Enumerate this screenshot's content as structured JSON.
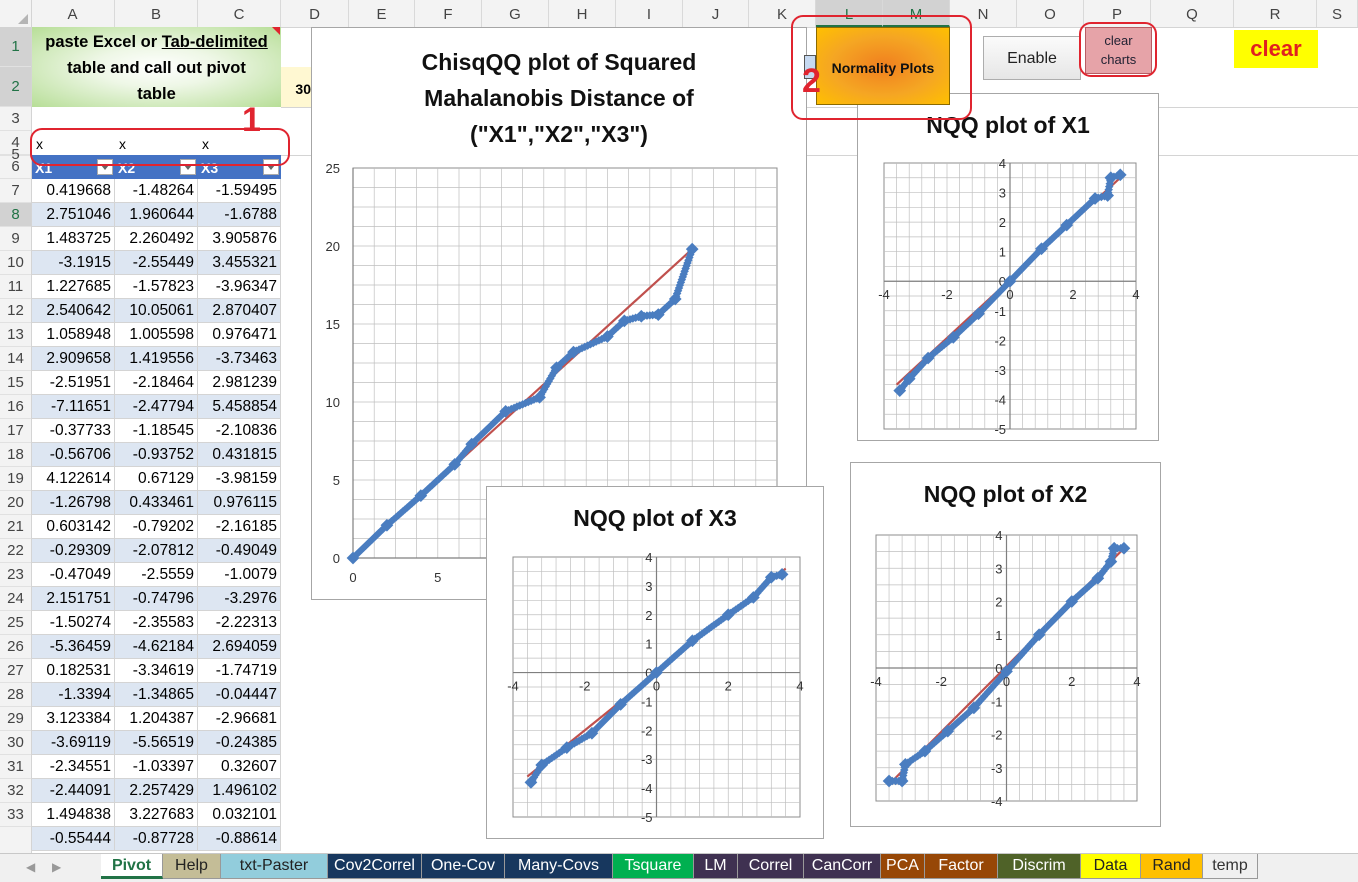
{
  "columns": [
    "A",
    "B",
    "C",
    "D",
    "E",
    "F",
    "G",
    "H",
    "I",
    "J",
    "K",
    "L",
    "M",
    "N",
    "O",
    "P",
    "Q",
    "R",
    "S"
  ],
  "rows": [
    "1",
    "2",
    "3",
    "4",
    "5",
    "6",
    "7",
    "8",
    "9",
    "10",
    "11",
    "12",
    "13",
    "14",
    "15",
    "16",
    "17",
    "18",
    "19",
    "20",
    "21",
    "22",
    "23",
    "24",
    "25",
    "26",
    "27",
    "28",
    "29",
    "30",
    "31",
    "32",
    "33"
  ],
  "paste_box": {
    "line1_a": "paste Excel or ",
    "line1_b": "Tab-delimited",
    "line2": "table and call out pivot",
    "line3": "table"
  },
  "cell_d2": "30",
  "row4": {
    "a": "x",
    "b": "x",
    "c": "x"
  },
  "headers": {
    "a": "X1",
    "b": "X2",
    "c": "X3"
  },
  "table": [
    [
      "0.419668",
      "-1.48264",
      "-1.59495"
    ],
    [
      "2.751046",
      "1.960644",
      "-1.6788"
    ],
    [
      "1.483725",
      "2.260492",
      "3.905876"
    ],
    [
      "-3.1915",
      "-2.55449",
      "3.455321"
    ],
    [
      "1.227685",
      "-1.57823",
      "-3.96347"
    ],
    [
      "2.540642",
      "10.05061",
      "2.870407"
    ],
    [
      "1.058948",
      "1.005598",
      "0.976471"
    ],
    [
      "2.909658",
      "1.419556",
      "-3.73463"
    ],
    [
      "-2.51951",
      "-2.18464",
      "2.981239"
    ],
    [
      "-7.11651",
      "-2.47794",
      "5.458854"
    ],
    [
      "-0.37733",
      "-1.18545",
      "-2.10836"
    ],
    [
      "-0.56706",
      "-0.93752",
      "0.431815"
    ],
    [
      "4.122614",
      "0.67129",
      "-3.98159"
    ],
    [
      "-1.26798",
      "0.433461",
      "0.976115"
    ],
    [
      "0.603142",
      "-0.79202",
      "-2.16185"
    ],
    [
      "-0.29309",
      "-2.07812",
      "-0.49049"
    ],
    [
      "-0.47049",
      "-2.5559",
      "-1.0079"
    ],
    [
      "2.151751",
      "-0.74796",
      "-3.2976"
    ],
    [
      "-1.50274",
      "-2.35583",
      "-2.22313"
    ],
    [
      "-5.36459",
      "-4.62184",
      "2.694059"
    ],
    [
      "0.182531",
      "-3.34619",
      "-1.74719"
    ],
    [
      "-1.3394",
      "-1.34865",
      "-0.04447"
    ],
    [
      "3.123384",
      "1.204387",
      "-2.96681"
    ],
    [
      "-3.69119",
      "-5.56519",
      "-0.24385"
    ],
    [
      "-2.34551",
      "-1.03397",
      "0.32607"
    ],
    [
      "-2.44091",
      "2.257429",
      "1.496102"
    ],
    [
      "1.494838",
      "3.227683",
      "0.032101"
    ],
    [
      "-0.55444",
      "-0.87728",
      "-0.88614"
    ]
  ],
  "buttons": {
    "normality": "Normality Plots",
    "enable": "Enable",
    "clear_charts_1": "clear",
    "clear_charts_2": "charts",
    "clear": "clear"
  },
  "annotations": {
    "one": "1",
    "two": "2"
  },
  "tabs": [
    "Pivot",
    "Help",
    "txt-Paster",
    "Cov2Correl",
    "One-Cov",
    "Many-Covs",
    "Tsquare",
    "LM",
    "Correl",
    "CanCorr",
    "PCA",
    "Factor",
    "Discrim",
    "Data",
    "Rand",
    "temp"
  ],
  "tab_colors": {
    "Pivot": "#ffffff",
    "Help": "#c4bd97",
    "txt-Paster": "#92cddc",
    "Cov2Correl": "#17375e",
    "One-Cov": "#17375e",
    "Many-Covs": "#17375e",
    "Tsquare": "#00b050",
    "LM": "#3f3151",
    "Correl": "#3f3151",
    "CanCorr": "#3f3151",
    "PCA": "#974706",
    "Factor": "#974706",
    "Discrim": "#4f6228",
    "Data": "#ffff00",
    "Rand": "#ffc000",
    "temp": "#f0f0f0"
  },
  "accent_colors": {
    "point": "#4a7dc0",
    "line": "#c0504d",
    "highlight": "#e0242f"
  },
  "chart_data": [
    {
      "type": "scatter",
      "title_lines": [
        "ChisqQQ plot of Squared",
        "Mahalanobis Distance of",
        "(\"X1\",\"X2\",\"X3\")"
      ],
      "xlim": [
        0,
        25
      ],
      "ylim": [
        0,
        25
      ],
      "x_ticks": [
        "0",
        "5"
      ],
      "y_ticks": [
        "0",
        "5",
        "10",
        "15",
        "20",
        "25"
      ],
      "grid": true,
      "line": [
        [
          0,
          0
        ],
        [
          20,
          19.8
        ]
      ],
      "points": [
        [
          0,
          0
        ],
        [
          2,
          2.1
        ],
        [
          4,
          4
        ],
        [
          6,
          6
        ],
        [
          7,
          7.3
        ],
        [
          9,
          9.4
        ],
        [
          11,
          10.3
        ],
        [
          12,
          12.2
        ],
        [
          13,
          13.2
        ],
        [
          15,
          14.2
        ],
        [
          16,
          15.2
        ],
        [
          17,
          15.5
        ],
        [
          18,
          15.6
        ],
        [
          19,
          16.6
        ],
        [
          20,
          19.8
        ]
      ]
    },
    {
      "type": "scatter",
      "title": "NQQ plot of X1",
      "xlim": [
        -4,
        4
      ],
      "ylim": [
        -5,
        4
      ],
      "x_ticks": [
        "-4",
        "-2",
        "0",
        "2",
        "4"
      ],
      "y_ticks": [
        "4",
        "3",
        "2",
        "1",
        "0",
        "-1",
        "-2",
        "-3",
        "-4",
        "-5"
      ],
      "grid": true,
      "line": [
        [
          -3.6,
          -3.5
        ],
        [
          3.6,
          3.6
        ]
      ],
      "points": [
        [
          -3.5,
          -3.7
        ],
        [
          -3.2,
          -3.3
        ],
        [
          -2.6,
          -2.6
        ],
        [
          -1.8,
          -1.9
        ],
        [
          -1,
          -1.1
        ],
        [
          0,
          0
        ],
        [
          1,
          1.1
        ],
        [
          1.8,
          1.9
        ],
        [
          2.7,
          2.8
        ],
        [
          3.1,
          2.9
        ],
        [
          3.2,
          3.5
        ],
        [
          3.5,
          3.6
        ]
      ]
    },
    {
      "type": "scatter",
      "title": "NQQ plot of X3",
      "xlim": [
        -4,
        4
      ],
      "ylim": [
        -5,
        4
      ],
      "x_ticks": [
        "-4",
        "-2",
        "0",
        "2",
        "4"
      ],
      "y_ticks": [
        "4",
        "3",
        "2",
        "1",
        "0",
        "-1",
        "-2",
        "-3",
        "-4",
        "-5"
      ],
      "grid": true,
      "line": [
        [
          -3.6,
          -3.6
        ],
        [
          3.6,
          3.6
        ]
      ],
      "points": [
        [
          -3.5,
          -3.8
        ],
        [
          -3.2,
          -3.2
        ],
        [
          -2.5,
          -2.6
        ],
        [
          -1.8,
          -2.1
        ],
        [
          -1,
          -1.1
        ],
        [
          0,
          0
        ],
        [
          1,
          1.1
        ],
        [
          2,
          2
        ],
        [
          2.7,
          2.6
        ],
        [
          3.2,
          3.3
        ],
        [
          3.5,
          3.4
        ]
      ]
    },
    {
      "type": "scatter",
      "title": "NQQ plot of X2",
      "xlim": [
        -4,
        4
      ],
      "ylim": [
        -4,
        4
      ],
      "x_ticks": [
        "-4",
        "-2",
        "0",
        "2",
        "4"
      ],
      "y_ticks": [
        "4",
        "3",
        "2",
        "1",
        "0",
        "-1",
        "-2",
        "-3",
        "-4"
      ],
      "grid": true,
      "line": [
        [
          -3.6,
          -3.5
        ],
        [
          3.6,
          3.6
        ]
      ],
      "points": [
        [
          -3.6,
          -3.4
        ],
        [
          -3.2,
          -3.4
        ],
        [
          -3.1,
          -2.9
        ],
        [
          -2.5,
          -2.5
        ],
        [
          -1.8,
          -1.9
        ],
        [
          -1,
          -1.2
        ],
        [
          0,
          -0.1
        ],
        [
          1,
          1
        ],
        [
          2,
          2
        ],
        [
          2.8,
          2.7
        ],
        [
          3.2,
          3.2
        ],
        [
          3.3,
          3.6
        ],
        [
          3.6,
          3.6
        ]
      ]
    }
  ]
}
